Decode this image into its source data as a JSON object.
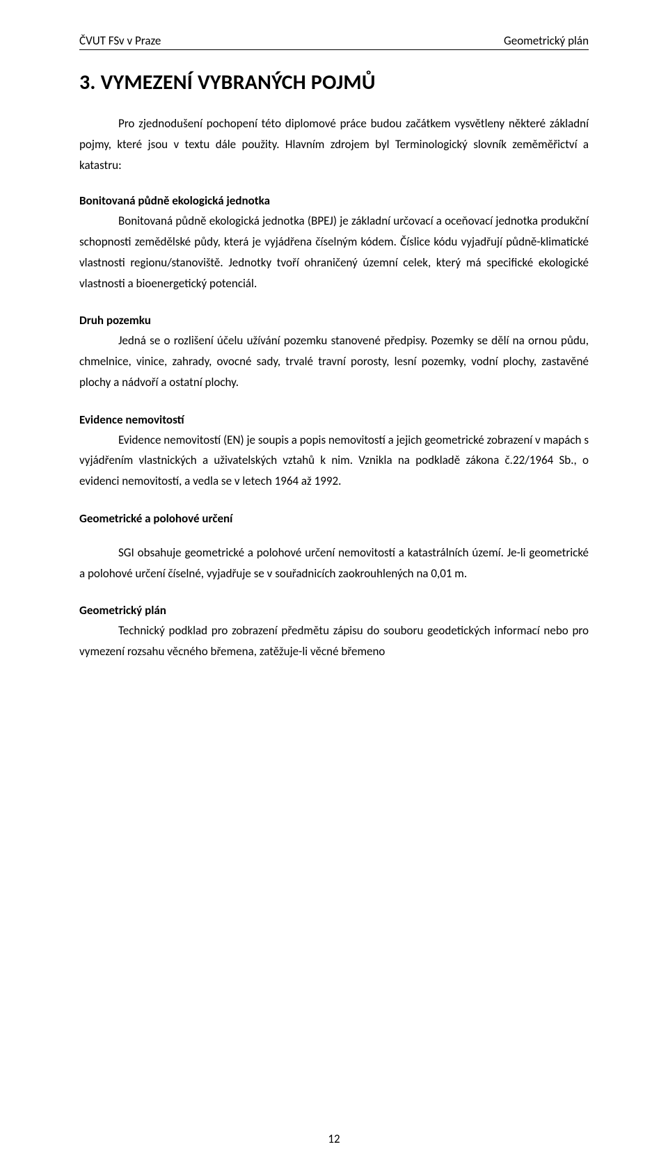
{
  "header": {
    "left": "ČVUT FSv v Praze",
    "right": "Geometrický plán"
  },
  "title": "3. VYMEZENÍ VYBRANÝCH POJMŮ",
  "intro": {
    "p1": "Pro zjednodušení pochopení této diplomové práce budou začátkem vysvětleny některé základní pojmy, které jsou v textu dále použity. Hlavním zdrojem byl Terminologický slovník zeměměřictví a katastru:"
  },
  "terms": [
    {
      "title": "Bonitovaná půdně ekologická jednotka",
      "body": "Bonitovaná půdně ekologická jednotka (BPEJ) je základní určovací a oceňovací jednotka produkční schopnosti zemědělské půdy, která je vyjádřena číselným kódem. Číslice kódu vyjadřují půdně-klimatické vlastnosti regionu/stanoviště. Jednotky tvoří ohraničený územní celek, který má specifické ekologické vlastnosti a bioenergetický potenciál."
    },
    {
      "title": "Druh pozemku",
      "body": "Jedná se o rozlišení účelu užívání pozemku stanovené předpisy. Pozemky se dělí na ornou půdu, chmelnice, vinice, zahrady, ovocné sady, trvalé travní porosty, lesní pozemky, vodní plochy, zastavěné plochy a nádvoří a ostatní plochy."
    },
    {
      "title": "Evidence nemovitostí",
      "body": "Evidence nemovitostí (EN) je soupis a popis nemovitostí a jejich geometrické zobrazení v mapách s vyjádřením vlastnických a uživatelských vztahů k nim. Vznikla na podkladě zákona č.22/1964 Sb., o evidenci nemovitostí, a vedla se v letech 1964 až 1992."
    },
    {
      "title": "Geometrické a polohové určení",
      "body": "SGI obsahuje geometrické a polohové určení nemovitostí a katastrálních území. Je-li geometrické a polohové určení číselné, vyjadřuje se v souřadnicích zaokrouhlených na 0,01 m."
    },
    {
      "title": "Geometrický plán",
      "body": "Technický podklad pro zobrazení předmětu zápisu do souboru geodetických informací nebo pro vymezení rozsahu věcného břemena, zatěžuje-li věcné břemeno"
    }
  ],
  "pageNumber": "12",
  "style": {
    "pageWidth": 960,
    "pageHeight": 1688,
    "bodyFontSize": 17,
    "titleFontSize": 30,
    "lineHeight": 1.75,
    "textColor": "#000000",
    "backgroundColor": "#ffffff",
    "horizontalPadding": 114,
    "topPadding": 48,
    "headerBorderColor": "#000000",
    "indent": 56
  }
}
